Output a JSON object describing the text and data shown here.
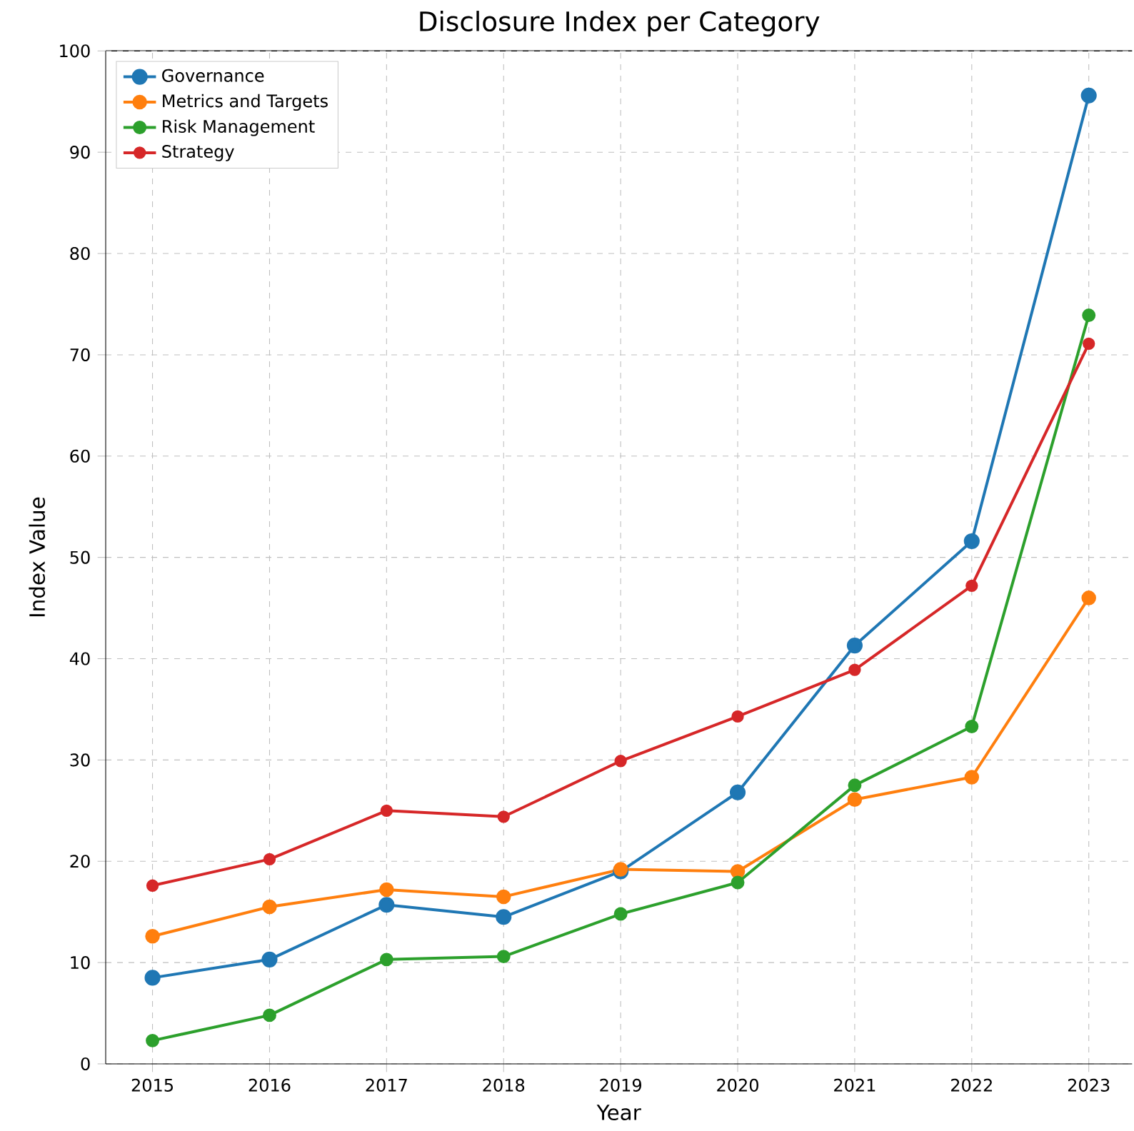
{
  "chart_data": {
    "type": "line",
    "title": "Disclosure Index per Category",
    "xlabel": "Year",
    "ylabel": "Index Value",
    "x": [
      2015,
      2016,
      2017,
      2018,
      2019,
      2020,
      2021,
      2022,
      2023
    ],
    "series": [
      {
        "name": "Governance",
        "color": "#1f77b4",
        "values": [
          8.5,
          10.3,
          15.7,
          14.5,
          19.0,
          26.8,
          41.3,
          51.6,
          95.6
        ]
      },
      {
        "name": "Metrics and Targets",
        "color": "#ff7f0e",
        "values": [
          12.6,
          15.5,
          17.2,
          16.5,
          19.2,
          19.0,
          26.1,
          28.3,
          46.0
        ]
      },
      {
        "name": "Risk Management",
        "color": "#2ca02c",
        "values": [
          2.3,
          4.8,
          10.3,
          10.6,
          14.8,
          17.9,
          27.5,
          33.3,
          73.9
        ]
      },
      {
        "name": "Strategy",
        "color": "#d62728",
        "values": [
          17.6,
          20.2,
          25.0,
          24.4,
          29.9,
          34.3,
          38.9,
          47.2,
          71.1
        ]
      }
    ],
    "xlim": [
      2014.6,
      2023.37
    ],
    "ylim": [
      0,
      100
    ],
    "xticks": [
      2015,
      2016,
      2017,
      2018,
      2019,
      2020,
      2021,
      2022,
      2023
    ],
    "yticks": [
      0,
      10,
      20,
      30,
      40,
      50,
      60,
      70,
      80,
      90,
      100
    ],
    "grid": true,
    "legend": "top left",
    "marker": "circle",
    "line_style": "solid"
  }
}
